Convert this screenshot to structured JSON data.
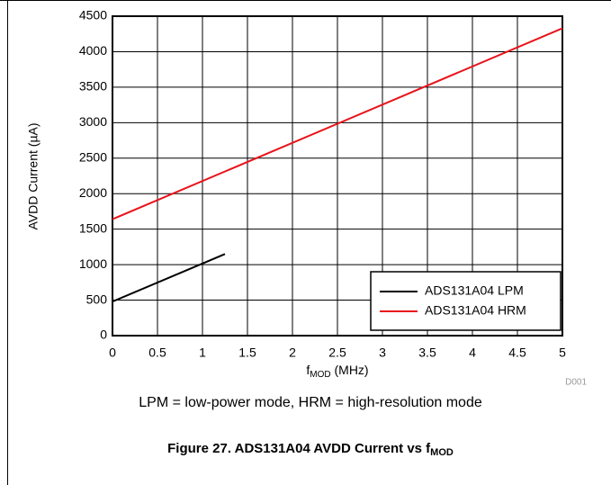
{
  "chart_data": {
    "type": "line",
    "x_label": [
      "f",
      "MOD",
      " (MHz)"
    ],
    "y_label": "AVDD Current (µA)",
    "note": "LPM = low-power mode, HRM = high-resolution mode",
    "code": "D001",
    "caption": [
      "Figure 27. ADS131A04 AVDD Current vs f",
      "MOD"
    ],
    "xlim": [
      0,
      5
    ],
    "xticks": [
      0,
      0.5,
      1,
      1.5,
      2,
      2.5,
      3,
      3.5,
      4,
      4.5,
      5
    ],
    "ylim": [
      0,
      4500
    ],
    "yticks": [
      0,
      500,
      1000,
      1500,
      2000,
      2500,
      3000,
      3500,
      4000,
      4500
    ],
    "grid": true,
    "legend": "lower right",
    "series": [
      {
        "name": "ADS131A04 LPM",
        "color": "#000000",
        "x": [
          0,
          1.25
        ],
        "values": [
          480,
          1150
        ]
      },
      {
        "name": "ADS131A04 HRM",
        "color": "#e8141b",
        "x": [
          0,
          5
        ],
        "values": [
          1640,
          4330
        ]
      }
    ]
  }
}
